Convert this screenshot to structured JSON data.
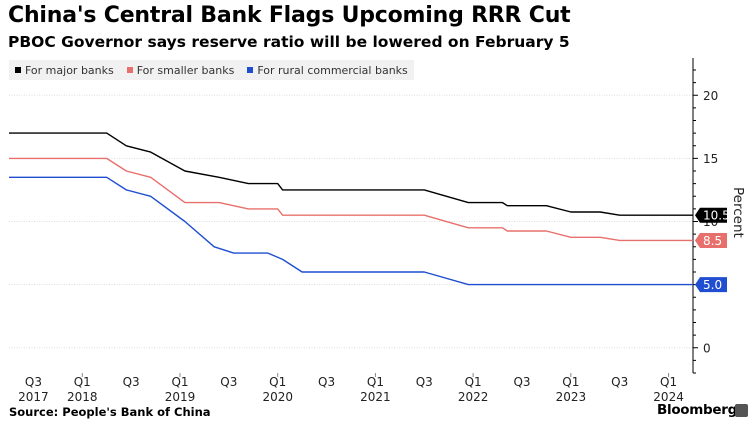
{
  "title": "China's Central Bank Flags Upcoming RRR Cut",
  "subtitle": "PBOC Governor says reserve ratio will be lowered on February 5",
  "source": "Source: People's Bank of China",
  "brand": "Bloomberg",
  "colors": {
    "major": "#000000",
    "smaller": "#e8706c",
    "rural": "#1f4fd0",
    "grid": "#dddddd"
  },
  "chart_data": {
    "type": "line",
    "xlabel": "",
    "ylabel": "Percent",
    "ylim": [
      -2,
      22
    ],
    "yticks": [
      0,
      5,
      10,
      15,
      20
    ],
    "xlim": [
      2017.25,
      2024.25
    ],
    "x_ticks": [
      {
        "x": 2017.5,
        "quarter": "Q3",
        "year": "2017"
      },
      {
        "x": 2018.0,
        "quarter": "Q1",
        "year": "2018"
      },
      {
        "x": 2018.5,
        "quarter": "Q3",
        "year": ""
      },
      {
        "x": 2019.0,
        "quarter": "Q1",
        "year": "2019"
      },
      {
        "x": 2019.5,
        "quarter": "Q3",
        "year": ""
      },
      {
        "x": 2020.0,
        "quarter": "Q1",
        "year": "2020"
      },
      {
        "x": 2020.5,
        "quarter": "Q3",
        "year": ""
      },
      {
        "x": 2021.0,
        "quarter": "Q1",
        "year": "2021"
      },
      {
        "x": 2021.5,
        "quarter": "Q3",
        "year": ""
      },
      {
        "x": 2022.0,
        "quarter": "Q1",
        "year": "2022"
      },
      {
        "x": 2022.5,
        "quarter": "Q3",
        "year": ""
      },
      {
        "x": 2023.0,
        "quarter": "Q1",
        "year": "2023"
      },
      {
        "x": 2023.5,
        "quarter": "Q3",
        "year": ""
      },
      {
        "x": 2024.0,
        "quarter": "Q1",
        "year": "2024"
      }
    ],
    "legend_position": "top-left",
    "grid": "horizontal",
    "series": [
      {
        "name": "For major banks",
        "color_key": "major",
        "end_label": "10.5",
        "points": [
          [
            2017.25,
            17
          ],
          [
            2018.25,
            17
          ],
          [
            2018.45,
            16
          ],
          [
            2018.7,
            15.5
          ],
          [
            2019.05,
            14
          ],
          [
            2019.4,
            13.5
          ],
          [
            2019.7,
            13
          ],
          [
            2020.0,
            13
          ],
          [
            2020.05,
            12.5
          ],
          [
            2021.5,
            12.5
          ],
          [
            2021.95,
            11.5
          ],
          [
            2022.3,
            11.5
          ],
          [
            2022.35,
            11.25
          ],
          [
            2022.75,
            11.25
          ],
          [
            2023.0,
            10.75
          ],
          [
            2023.3,
            10.75
          ],
          [
            2023.5,
            10.5
          ],
          [
            2024.25,
            10.5
          ]
        ]
      },
      {
        "name": "For smaller banks",
        "color_key": "smaller",
        "end_label": "8.5",
        "points": [
          [
            2017.25,
            15
          ],
          [
            2018.25,
            15
          ],
          [
            2018.45,
            14
          ],
          [
            2018.7,
            13.5
          ],
          [
            2019.05,
            11.5
          ],
          [
            2019.4,
            11.5
          ],
          [
            2019.7,
            11
          ],
          [
            2020.0,
            11
          ],
          [
            2020.05,
            10.5
          ],
          [
            2021.5,
            10.5
          ],
          [
            2021.95,
            9.5
          ],
          [
            2022.3,
            9.5
          ],
          [
            2022.35,
            9.25
          ],
          [
            2022.75,
            9.25
          ],
          [
            2023.0,
            8.75
          ],
          [
            2023.3,
            8.75
          ],
          [
            2023.5,
            8.5
          ],
          [
            2024.25,
            8.5
          ]
        ]
      },
      {
        "name": "For rural commercial banks",
        "color_key": "rural",
        "end_label": "5.0",
        "points": [
          [
            2017.25,
            13.5
          ],
          [
            2018.25,
            13.5
          ],
          [
            2018.45,
            12.5
          ],
          [
            2018.7,
            12
          ],
          [
            2019.05,
            10
          ],
          [
            2019.35,
            8
          ],
          [
            2019.55,
            7.5
          ],
          [
            2019.9,
            7.5
          ],
          [
            2020.05,
            7
          ],
          [
            2020.25,
            6
          ],
          [
            2021.5,
            6
          ],
          [
            2021.95,
            5
          ],
          [
            2024.25,
            5
          ]
        ]
      }
    ]
  }
}
